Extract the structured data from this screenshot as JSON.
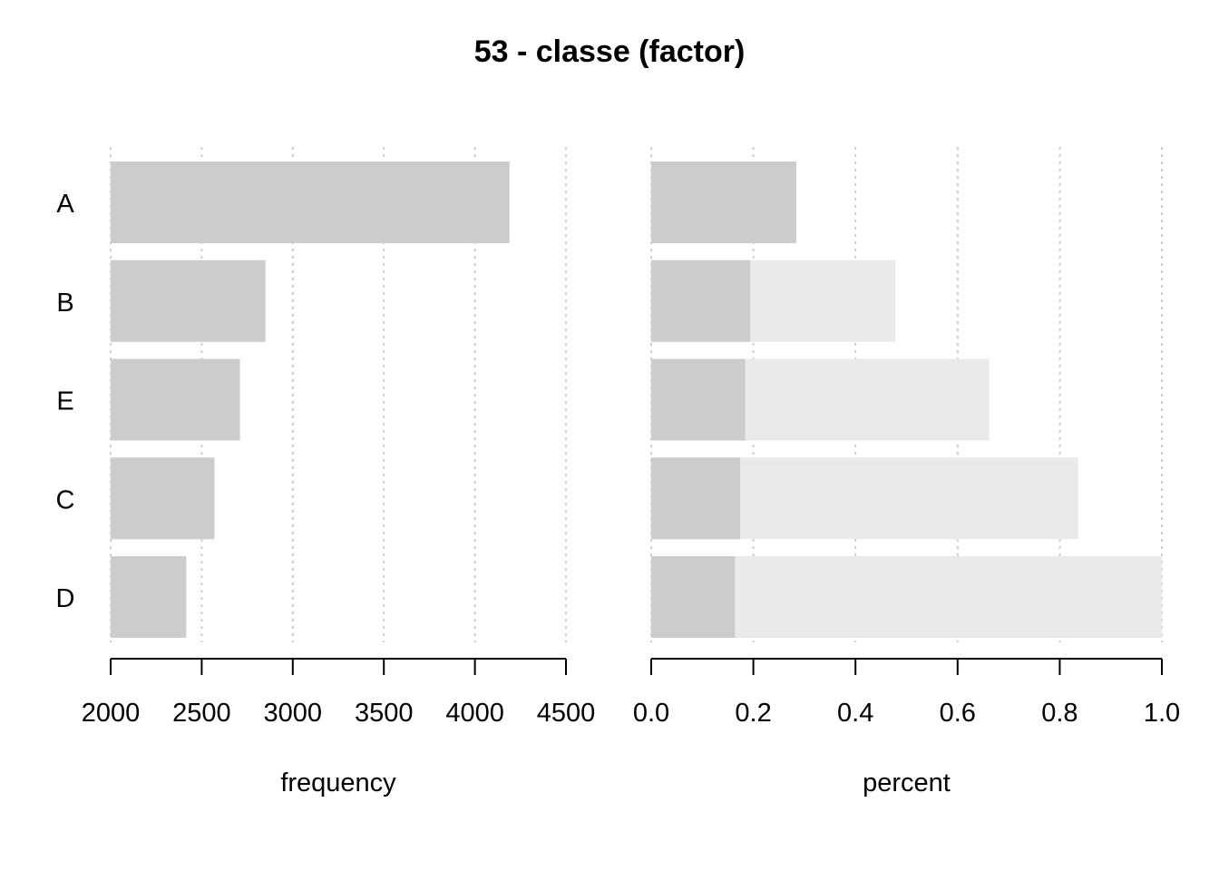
{
  "title": "53 - classe (factor)",
  "colors": {
    "bar": "#cccccc",
    "cumulative_bar": "#eaeaea",
    "grid": "#cfcfcf",
    "axis": "#000000"
  },
  "chart_data": [
    {
      "type": "bar",
      "orientation": "horizontal",
      "categories": [
        "A",
        "B",
        "E",
        "C",
        "D"
      ],
      "values": [
        4190,
        2850,
        2710,
        2570,
        2415
      ],
      "xlabel": "frequency",
      "xlim": [
        2000,
        4500
      ],
      "xticks": [
        "2000",
        "2500",
        "3000",
        "3500",
        "4000",
        "4500"
      ],
      "grid": "vertical dotted"
    },
    {
      "type": "bar",
      "orientation": "horizontal",
      "categories": [
        "A",
        "B",
        "E",
        "C",
        "D"
      ],
      "series": [
        {
          "name": "",
          "values": [
            0.284,
            0.194,
            0.184,
            0.174,
            0.164
          ]
        },
        {
          "name": "",
          "values": [
            0.284,
            0.478,
            0.662,
            0.836,
            1.0
          ]
        }
      ],
      "xlabel": "percent",
      "xlim": [
        0.0,
        1.0
      ],
      "xticks": [
        "0.0",
        "0.2",
        "0.4",
        "0.6",
        "0.8",
        "1.0"
      ],
      "grid": "vertical dotted"
    }
  ]
}
